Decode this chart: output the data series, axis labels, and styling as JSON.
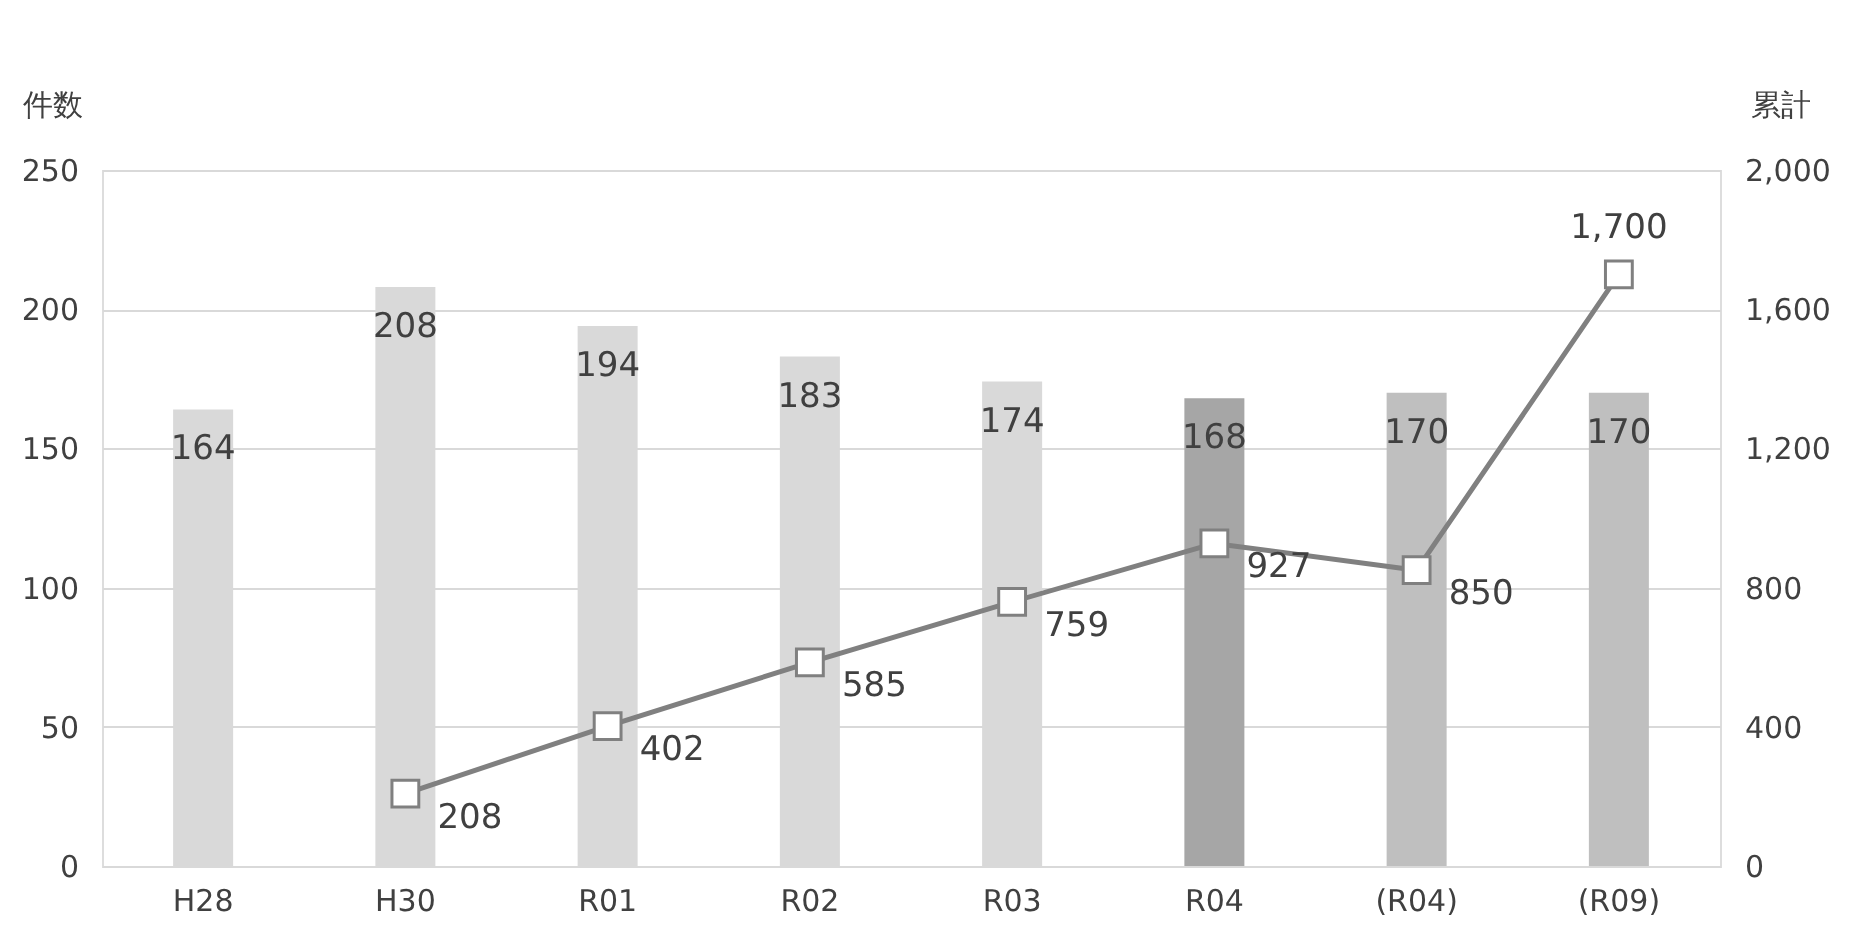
{
  "chart_data": {
    "type": "bar",
    "categories": [
      "H28",
      "H30",
      "R01",
      "R02",
      "R03",
      "R04",
      "(R04)",
      "(R09)"
    ],
    "ylabel": "件数",
    "y2label": "累計",
    "ylim": [
      0,
      250
    ],
    "yticks": [
      0,
      50,
      100,
      150,
      200,
      250
    ],
    "y2lim": [
      0,
      2000
    ],
    "y2ticks": [
      0,
      400,
      800,
      {
        "value": 1200,
        "label": "1,200"
      },
      {
        "value": 1600,
        "label": "1,600"
      },
      {
        "value": 2000,
        "label": "2,000"
      }
    ],
    "grid": "y",
    "data_labels": true,
    "series": [
      {
        "values": [
          164,
          208,
          194,
          183,
          174,
          168,
          170,
          170
        ],
        "colors": [
          "#d9d9d9",
          "#d9d9d9",
          "#d9d9d9",
          "#d9d9d9",
          "#d9d9d9",
          "#a6a6a6",
          "#bfbfbf",
          "#bfbfbf"
        ]
      },
      {
        "type": "line",
        "axis": "y2",
        "color": "#808080",
        "marker": "square",
        "values": [
          null,
          208,
          402,
          585,
          759,
          927,
          850,
          1700
        ],
        "value_labels": [
          null,
          "208",
          "402",
          "585",
          "759",
          "927",
          "850",
          "1,700"
        ]
      }
    ]
  }
}
